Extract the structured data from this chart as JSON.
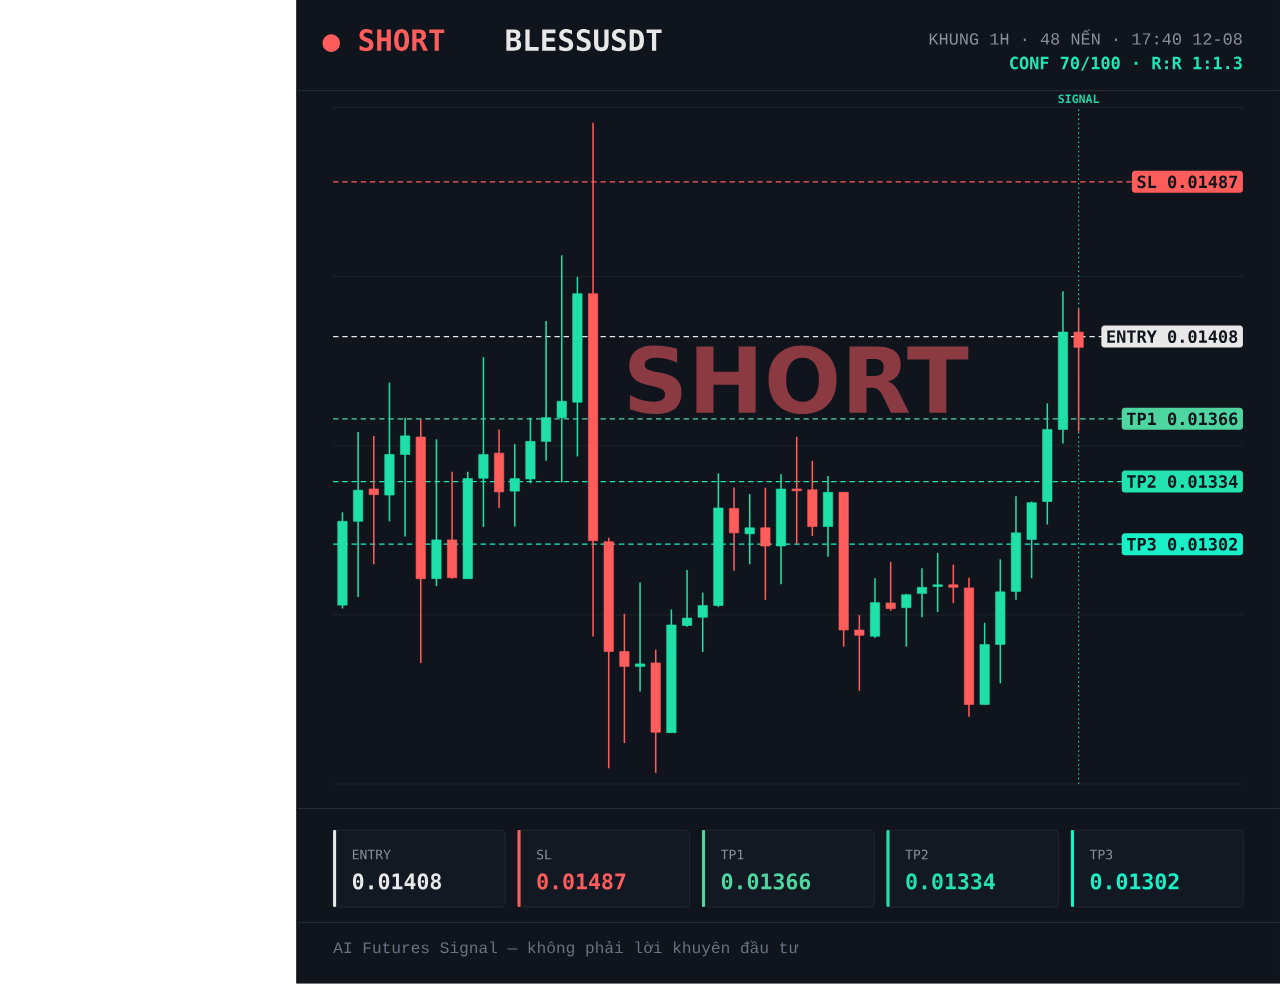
{
  "chart_data": {
    "type": "candlestick",
    "title": "BLESSUSDT",
    "subtitle": "KHUNG 1H · 48 NẾN · 17:40 12-08",
    "categories": [
      null,
      null,
      null,
      null,
      null,
      null,
      null,
      null,
      null,
      null,
      null,
      null,
      null,
      null,
      null,
      null,
      null,
      null,
      null,
      null,
      null,
      null,
      null,
      null,
      null,
      null,
      null,
      null,
      null,
      null,
      null,
      null,
      null,
      null,
      null,
      null,
      null,
      null,
      null,
      null,
      null,
      null,
      null,
      null,
      null,
      null,
      null,
      null
    ],
    "ohlc": [
      [
        0.012709,
        0.013183,
        0.012692,
        0.013137
      ],
      [
        0.013137,
        0.013593,
        0.012751,
        0.013296
      ],
      [
        0.013302,
        0.013573,
        0.012918,
        0.013273
      ],
      [
        0.013271,
        0.013845,
        0.013137,
        0.013478
      ],
      [
        0.013478,
        0.013666,
        0.01306,
        0.013573
      ],
      [
        0.013567,
        0.013657,
        0.012414,
        0.012844
      ],
      [
        0.012844,
        0.013556,
        0.012806,
        0.013042
      ],
      [
        0.013042,
        0.01339,
        0.012844,
        0.012849
      ],
      [
        0.012844,
        0.01339,
        0.012844,
        0.013355
      ],
      [
        0.013357,
        0.013975,
        0.013108,
        0.013478
      ],
      [
        0.013485,
        0.013606,
        0.013205,
        0.013287
      ],
      [
        0.013291,
        0.013531,
        0.01311,
        0.013355
      ],
      [
        0.013353,
        0.013666,
        0.013331,
        0.013545
      ],
      [
        0.013545,
        0.01416,
        0.013446,
        0.013666
      ],
      [
        0.013666,
        0.014495,
        0.013335,
        0.01375
      ],
      [
        0.013745,
        0.014385,
        0.013468,
        0.014299
      ],
      [
        0.014299,
        0.015172,
        0.012549,
        0.013038
      ],
      [
        0.013033,
        0.013053,
        0.011876,
        0.012472
      ],
      [
        0.012472,
        0.012665,
        0.012005,
        0.012396
      ],
      [
        0.012396,
        0.012824,
        0.012268,
        0.012409
      ],
      [
        0.012414,
        0.012482,
        0.011853,
        0.01206
      ],
      [
        0.012058,
        0.012687,
        0.012058,
        0.012608
      ],
      [
        0.012605,
        0.012889,
        0.012599,
        0.012643
      ],
      [
        0.012647,
        0.012773,
        0.01247,
        0.012707
      ],
      [
        0.012707,
        0.013382,
        0.0127,
        0.013205
      ],
      [
        0.013203,
        0.013309,
        0.012885,
        0.013078
      ],
      [
        0.013073,
        0.013276,
        0.012918,
        0.013104
      ],
      [
        0.013104,
        0.013309,
        0.012736,
        0.013011
      ],
      [
        0.013011,
        0.013377,
        0.012816,
        0.013302
      ],
      [
        0.013302,
        0.013569,
        0.013022,
        0.013293
      ],
      [
        0.013298,
        0.013446,
        0.013062,
        0.01311
      ],
      [
        0.01311,
        0.013368,
        0.012956,
        0.013285
      ],
      [
        0.013285,
        0.013285,
        0.012497,
        0.012582
      ],
      [
        0.012582,
        0.012658,
        0.012272,
        0.012555
      ],
      [
        0.01255,
        0.012846,
        0.012541,
        0.012722
      ],
      [
        0.01272,
        0.01293,
        0.01268,
        0.012691
      ],
      [
        0.012696,
        0.012767,
        0.012497,
        0.012762
      ],
      [
        0.012769,
        0.012897,
        0.012647,
        0.0128
      ],
      [
        0.012804,
        0.012976,
        0.012674,
        0.012813
      ],
      [
        0.012813,
        0.012916,
        0.01272,
        0.0128
      ],
      [
        0.012797,
        0.012849,
        0.012139,
        0.012202
      ],
      [
        0.012202,
        0.012619,
        0.012202,
        0.012508
      ],
      [
        0.012508,
        0.012943,
        0.01231,
        0.012777
      ],
      [
        0.012779,
        0.013265,
        0.012736,
        0.013078
      ],
      [
        0.013044,
        0.013238,
        0.012846,
        0.013232
      ],
      [
        0.013238,
        0.013739,
        0.013121,
        0.013606
      ],
      [
        0.013606,
        0.014312,
        0.013534,
        0.014103
      ],
      [
        0.014103,
        0.014222,
        0.013595,
        0.014025
      ]
    ],
    "colors": [
      "#1fe0a8",
      "#1fe0a8",
      "#ff5c5c",
      "#1fe0a8",
      "#1fe0a8",
      "#ff5c5c",
      "#1fe0a8",
      "#ff5c5c",
      "#1fe0a8",
      "#1fe0a8",
      "#ff5c5c",
      "#1fe0a8",
      "#1fe0a8",
      "#1fe0a8",
      "#1fe0a8",
      "#1fe0a8",
      "#ff5c5c",
      "#ff5c5c",
      "#ff5c5c",
      "#1fe0a8",
      "#ff5c5c",
      "#1fe0a8",
      "#1fe0a8",
      "#1fe0a8",
      "#1fe0a8",
      "#ff5c5c",
      "#1fe0a8",
      "#ff5c5c",
      "#1fe0a8",
      "#ff5c5c",
      "#ff5c5c",
      "#1fe0a8",
      "#ff5c5c",
      "#ff5c5c",
      "#1fe0a8",
      "#ff5c5c",
      "#1fe0a8",
      "#1fe0a8",
      "#1fe0a8",
      "#ff5c5c",
      "#ff5c5c",
      "#1fe0a8",
      "#1fe0a8",
      "#1fe0a8",
      "#1fe0a8",
      "#1fe0a8",
      "#1fe0a8",
      "#ff5c5c"
    ],
    "ylim": [
      0.011796,
      0.015249
    ],
    "yticks": [
      {
        "value": 0.011796,
        "label": null
      },
      {
        "value": 0.012659,
        "label": null
      },
      {
        "value": 0.013522,
        "label": null
      },
      {
        "value": 0.014386,
        "label": null
      },
      {
        "value": 0.015249,
        "label": null
      }
    ],
    "grid": "y",
    "ref_lines": [
      {
        "axis": "y",
        "value": 0.01408,
        "label": "ENTRY 0.01408",
        "color": "#e8e8e8",
        "line_style": "dashed"
      },
      {
        "axis": "y",
        "value": 0.01487,
        "label": "SL 0.01487",
        "color": "#ff5c5c",
        "line_style": "dashed"
      },
      {
        "axis": "y",
        "value": 0.01366,
        "label": "TP1 0.01366",
        "color": "#4fd6a0",
        "line_style": "dashed"
      },
      {
        "axis": "y",
        "value": 0.01334,
        "label": "TP2 0.01334",
        "color": "#22e3b0",
        "line_style": "dashed"
      },
      {
        "axis": "y",
        "value": 0.01302,
        "label": "TP3 0.01302",
        "color": "#19f0c8",
        "line_style": "dashed"
      }
    ],
    "annotations": [
      "● SHORT",
      "CONF 70/100 · R:R 1:1.3",
      "SIGNAL",
      "SHORT",
      "ENTRY",
      "0.01408",
      "SL",
      "0.01487",
      "TP1",
      "0.01366",
      "TP2",
      "0.01334",
      "TP3",
      "0.01302",
      "AI Futures Signal — không phải lời khuyên đầu tư"
    ]
  }
}
